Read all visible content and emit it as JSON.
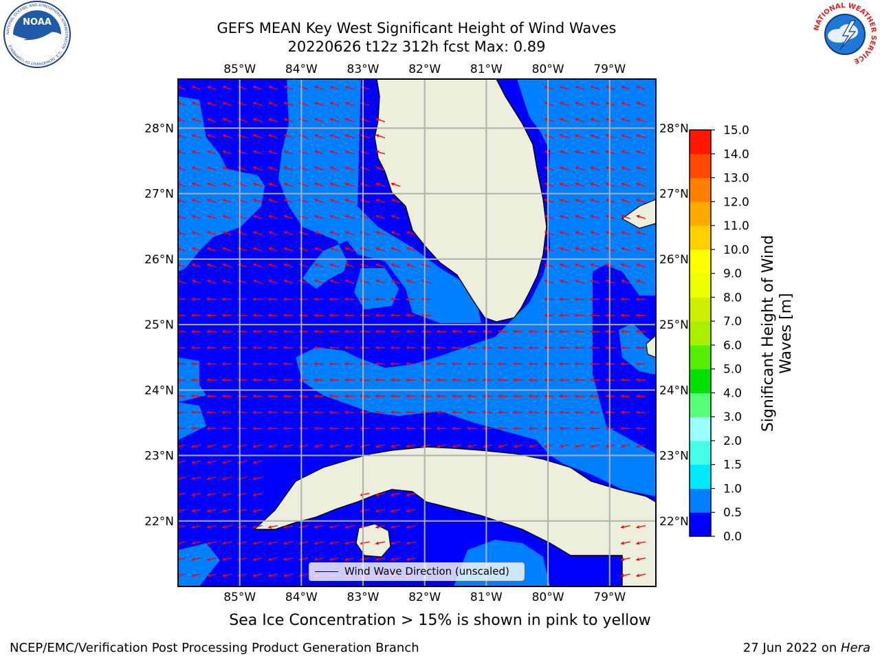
{
  "header": {
    "title_line1": "GEFS MEAN Key West Significant Height of Wind Waves",
    "title_line2": "20220626 t12z 312h fcst   Max: 0.89"
  },
  "logos": {
    "left": {
      "text": "NOAA",
      "ring_text": "NATIONAL OCEANIC AND ATMOSPHERIC ADMINISTRATION · U.S. DEPARTMENT OF COMMERCE"
    },
    "right": {
      "ring_text": "NATIONAL WEATHER SERVICE"
    }
  },
  "chart_data": {
    "type": "heatmap",
    "title": "GEFS MEAN Key West Significant Height of Wind Waves",
    "subtitle": "20220626 t12z 312h fcst   Max: 0.89",
    "max_value": 0.89,
    "x_ticks": [
      "85°W",
      "84°W",
      "83°W",
      "82°W",
      "81°W",
      "80°W",
      "79°W"
    ],
    "y_ticks": [
      "28°N",
      "27°N",
      "26°N",
      "25°N",
      "24°N",
      "23°N",
      "22°N"
    ],
    "lon_range": [
      -86.0,
      -78.25
    ],
    "lat_range": [
      21.0,
      28.75
    ],
    "grid": true,
    "colorbar": {
      "label": "Significant Height of Wind Waves [m]",
      "label_line1": "Significant Height of Wind",
      "label_line2": "Waves [m]",
      "levels": [
        0.0,
        0.5,
        1.0,
        1.5,
        2.0,
        3.0,
        4.0,
        5.0,
        6.0,
        7.0,
        8.0,
        9.0,
        10.0,
        11.0,
        12.0,
        13.0,
        14.0,
        15.0
      ],
      "level_labels": [
        "0.0",
        "0.5",
        "1.0",
        "1.5",
        "2.0",
        "3.0",
        "4.0",
        "5.0",
        "6.0",
        "7.0",
        "8.0",
        "9.0",
        "10.0",
        "11.0",
        "12.0",
        "13.0",
        "14.0",
        "15.0"
      ],
      "colors": [
        "#0000ff",
        "#0080ff",
        "#00e8ff",
        "#44ffe6",
        "#99ffff",
        "#55ff77",
        "#00e000",
        "#55ee00",
        "#aaee00",
        "#ccee00",
        "#eeff00",
        "#ffff00",
        "#ffd000",
        "#ffa800",
        "#ff8000",
        "#ff4800",
        "#ff1800"
      ]
    },
    "field_colors": {
      "low": "#0000ff",
      "mid": "#0080ff",
      "land": "#eeeedc",
      "arrow": "#ff0000"
    },
    "legend": {
      "entry": "Wind Wave Direction (unscaled)",
      "placement": "lower-center"
    }
  },
  "footnote": "Sea Ice Concentration > 15% is shown in pink to yellow",
  "credits": {
    "left": "NCEP/EMC/Verification Post Processing Product Generation Branch",
    "right_prefix": "27 Jun 2022 on ",
    "right_host": "Hera"
  }
}
